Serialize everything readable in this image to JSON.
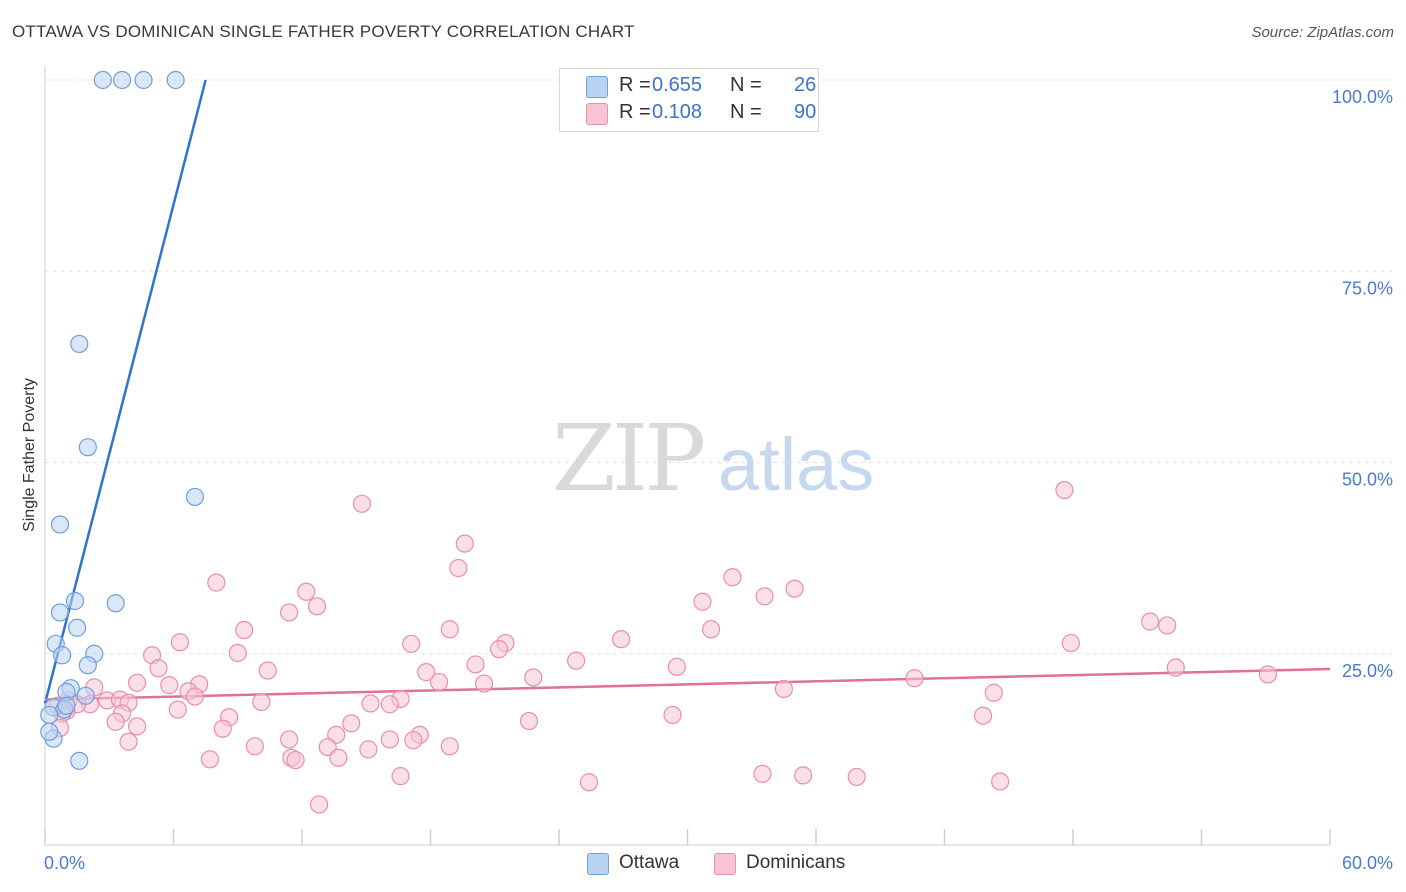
{
  "title": "OTTAWA VS DOMINICAN SINGLE FATHER POVERTY CORRELATION CHART",
  "source": "Source: ZipAtlas.com",
  "watermark": {
    "zip": "ZIP",
    "atlas": "atlas"
  },
  "colors": {
    "ottawa_fill": "#b9d3f3",
    "ottawa_stroke": "#6f9fdc",
    "ottawa_line": "#2f74d0",
    "dominicans_fill": "#f7c4d4",
    "dominicans_stroke": "#e88fab",
    "dominicans_line": "#e0709a",
    "tick_label": "#4a7cc9",
    "grid": "#e3e3e3"
  },
  "legend": {
    "ottawa": {
      "r_label": "R =",
      "r_value": "0.655",
      "n_label": "N =",
      "n_value": "26"
    },
    "dominicans": {
      "r_label": "R =",
      "r_value": "0.108",
      "n_label": "N =",
      "n_value": "90"
    }
  },
  "bottom_legend": {
    "ottawa": "Ottawa",
    "dominicans": "Dominicans"
  },
  "chart_data": {
    "type": "scatter",
    "title": "OTTAWA VS DOMINICAN SINGLE FATHER POVERTY CORRELATION CHART",
    "xlabel": "",
    "ylabel": "Single Father Poverty",
    "xlim": [
      0,
      60
    ],
    "ylim": [
      0,
      100
    ],
    "x_tick_labels": {
      "min": "0.0%",
      "max": "60.0%"
    },
    "y_tick_labels": [
      "100.0%",
      "75.0%",
      "50.0%",
      "25.0%"
    ],
    "y_tick_values": [
      100,
      75,
      50,
      25
    ],
    "grid": true,
    "series": [
      {
        "name": "Ottawa",
        "r": 0.655,
        "n": 26,
        "trend": {
          "x": [
            0,
            7.5
          ],
          "y": [
            18.5,
            100
          ]
        },
        "points": [
          [
            2.7,
            100
          ],
          [
            3.6,
            100
          ],
          [
            4.6,
            100
          ],
          [
            6.1,
            100
          ],
          [
            1.6,
            65.5
          ],
          [
            2.0,
            52.0
          ],
          [
            7.0,
            45.5
          ],
          [
            0.7,
            41.9
          ],
          [
            1.4,
            31.9
          ],
          [
            3.3,
            31.6
          ],
          [
            0.7,
            30.4
          ],
          [
            1.5,
            28.4
          ],
          [
            0.5,
            26.3
          ],
          [
            0.8,
            24.8
          ],
          [
            2.3,
            25.0
          ],
          [
            2.0,
            23.5
          ],
          [
            1.2,
            20.5
          ],
          [
            1.9,
            19.5
          ],
          [
            1.0,
            20.0
          ],
          [
            0.4,
            18.0
          ],
          [
            0.9,
            17.7
          ],
          [
            0.2,
            17.0
          ],
          [
            1.6,
            11.0
          ],
          [
            0.4,
            13.9
          ],
          [
            0.2,
            14.8
          ],
          [
            1.0,
            18.2
          ]
        ]
      },
      {
        "name": "Dominicans",
        "r": 0.108,
        "n": 90,
        "trend": {
          "x": [
            0,
            60
          ],
          "y": [
            19.0,
            23.0
          ]
        },
        "points": [
          [
            14.8,
            44.6
          ],
          [
            47.6,
            46.4
          ],
          [
            19.6,
            39.4
          ],
          [
            19.3,
            36.2
          ],
          [
            8.0,
            34.3
          ],
          [
            32.1,
            35.0
          ],
          [
            35.0,
            33.5
          ],
          [
            12.2,
            33.1
          ],
          [
            33.6,
            32.5
          ],
          [
            30.7,
            31.8
          ],
          [
            12.7,
            31.2
          ],
          [
            11.4,
            30.4
          ],
          [
            51.6,
            29.2
          ],
          [
            52.4,
            28.7
          ],
          [
            18.9,
            28.2
          ],
          [
            9.3,
            28.1
          ],
          [
            31.1,
            28.2
          ],
          [
            6.3,
            26.5
          ],
          [
            26.9,
            26.9
          ],
          [
            17.1,
            26.3
          ],
          [
            21.5,
            26.4
          ],
          [
            47.9,
            26.4
          ],
          [
            21.2,
            25.6
          ],
          [
            9.0,
            25.1
          ],
          [
            5.0,
            24.8
          ],
          [
            24.8,
            24.1
          ],
          [
            20.1,
            23.6
          ],
          [
            29.5,
            23.3
          ],
          [
            52.8,
            23.2
          ],
          [
            5.3,
            23.1
          ],
          [
            10.4,
            22.8
          ],
          [
            17.8,
            22.6
          ],
          [
            57.1,
            22.3
          ],
          [
            22.8,
            21.9
          ],
          [
            40.6,
            21.8
          ],
          [
            18.4,
            21.3
          ],
          [
            20.5,
            21.1
          ],
          [
            7.2,
            21.0
          ],
          [
            5.8,
            20.9
          ],
          [
            2.3,
            20.6
          ],
          [
            4.3,
            21.2
          ],
          [
            6.7,
            20.1
          ],
          [
            34.5,
            20.4
          ],
          [
            44.3,
            19.9
          ],
          [
            7.0,
            19.4
          ],
          [
            2.9,
            18.9
          ],
          [
            3.5,
            19.0
          ],
          [
            1.1,
            18.9
          ],
          [
            15.2,
            18.5
          ],
          [
            16.6,
            19.1
          ],
          [
            10.1,
            18.7
          ],
          [
            16.1,
            18.4
          ],
          [
            2.1,
            18.4
          ],
          [
            3.9,
            18.6
          ],
          [
            1.5,
            18.4
          ],
          [
            0.6,
            18.2
          ],
          [
            1.0,
            17.5
          ],
          [
            6.2,
            17.7
          ],
          [
            0.8,
            17.2
          ],
          [
            3.6,
            17.2
          ],
          [
            8.6,
            16.7
          ],
          [
            29.3,
            17.0
          ],
          [
            43.8,
            16.9
          ],
          [
            22.6,
            16.2
          ],
          [
            3.3,
            16.1
          ],
          [
            4.3,
            15.5
          ],
          [
            0.7,
            15.3
          ],
          [
            8.3,
            15.2
          ],
          [
            14.3,
            15.9
          ],
          [
            11.4,
            13.8
          ],
          [
            13.6,
            14.4
          ],
          [
            17.5,
            14.4
          ],
          [
            16.1,
            13.8
          ],
          [
            17.2,
            13.7
          ],
          [
            3.9,
            13.5
          ],
          [
            9.8,
            12.9
          ],
          [
            13.2,
            12.8
          ],
          [
            15.1,
            12.5
          ],
          [
            18.9,
            12.9
          ],
          [
            11.5,
            11.4
          ],
          [
            11.7,
            11.1
          ],
          [
            13.7,
            11.4
          ],
          [
            7.7,
            11.2
          ],
          [
            16.6,
            9.0
          ],
          [
            33.5,
            9.3
          ],
          [
            35.4,
            9.1
          ],
          [
            37.9,
            8.9
          ],
          [
            25.4,
            8.2
          ],
          [
            44.6,
            8.3
          ],
          [
            12.8,
            5.3
          ]
        ]
      }
    ]
  }
}
